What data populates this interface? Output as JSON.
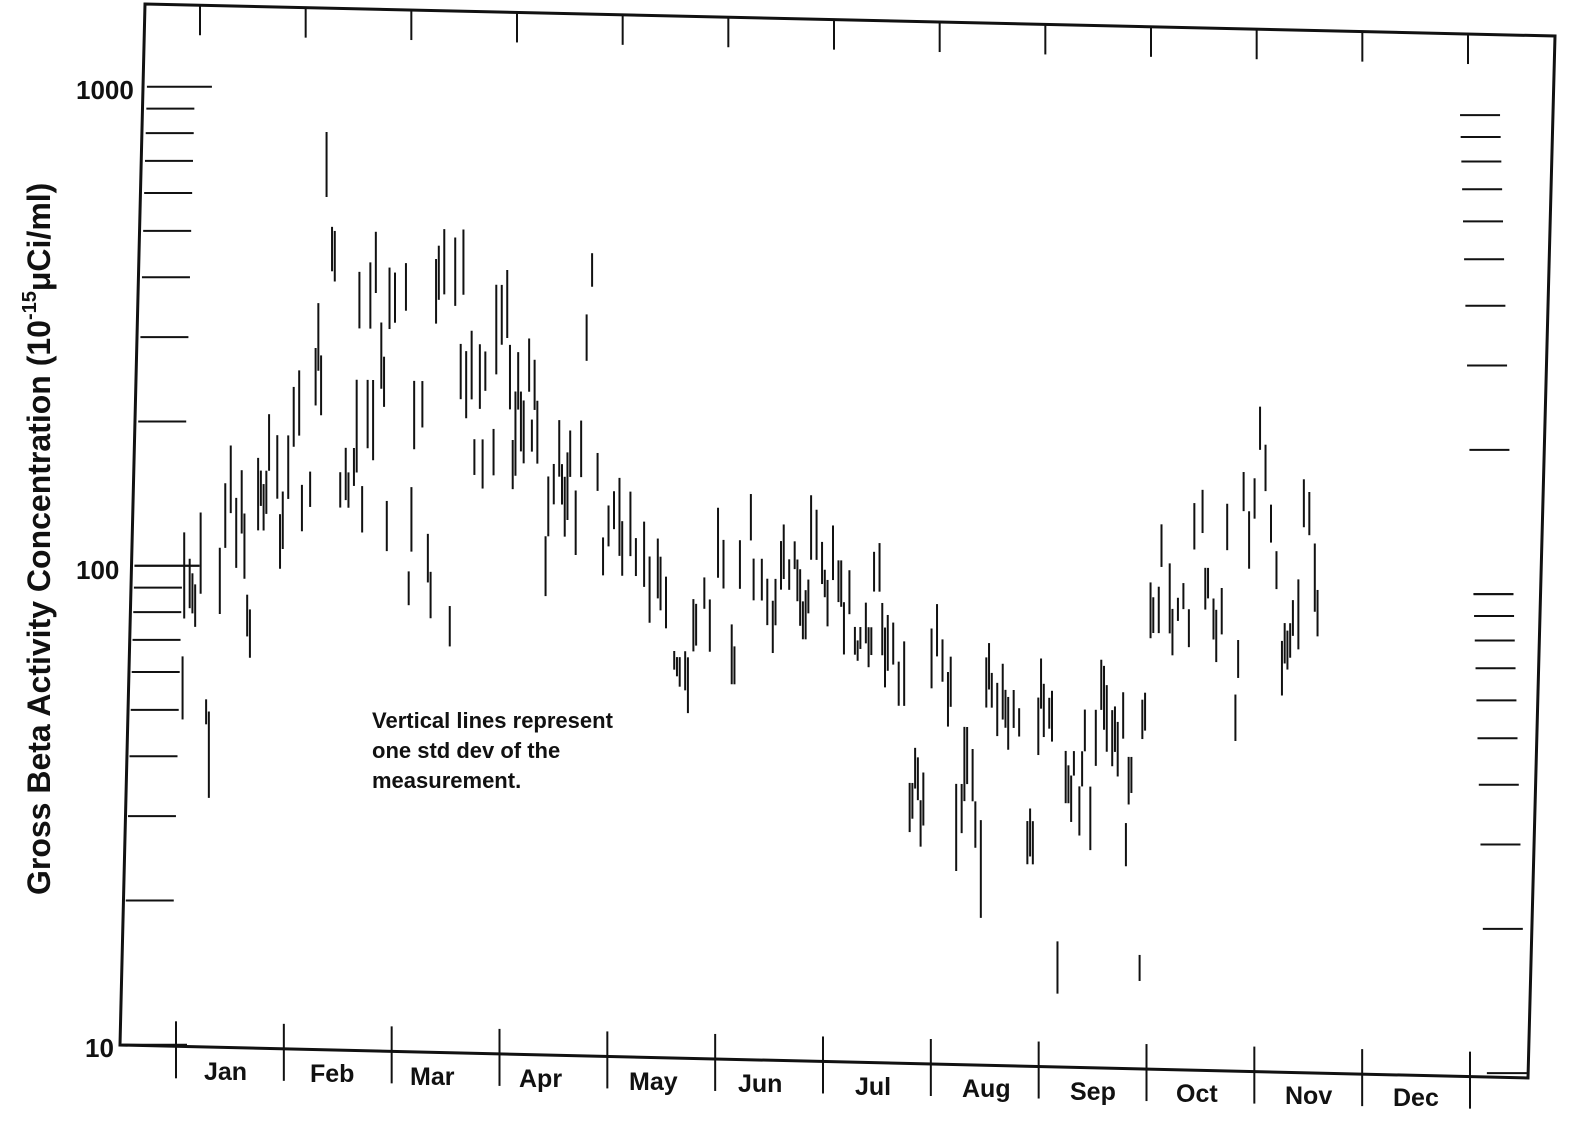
{
  "chart_data": {
    "type": "scatter",
    "ylabel": "Gross Beta Activity Concentration (10",
    "ylabel_sup": "-15",
    "ylabel_unit": "μCi/ml)",
    "yscale": "log",
    "ylim": [
      10,
      1000
    ],
    "ytick_labels": [
      "1000",
      "100",
      "10"
    ],
    "categories": [
      "Jan",
      "Feb",
      "Mar",
      "Apr",
      "May",
      "Jun",
      "Jul",
      "Aug",
      "Sep",
      "Oct",
      "Nov",
      "Dec"
    ],
    "annotation": "Vertical lines represent\none std dev of the\nmeasurement.",
    "error_bars": [
      [
        0.15,
        78,
        118
      ],
      [
        0.12,
        48,
        65
      ],
      [
        0.25,
        82,
        104
      ],
      [
        0.3,
        80,
        97
      ],
      [
        0.35,
        75,
        92
      ],
      [
        0.45,
        88,
        130
      ],
      [
        0.55,
        47,
        53
      ],
      [
        0.6,
        33,
        50
      ],
      [
        0.8,
        80,
        110
      ],
      [
        0.9,
        110,
        150
      ],
      [
        1.0,
        130,
        180
      ],
      [
        1.1,
        100,
        140
      ],
      [
        1.2,
        118,
        160
      ],
      [
        1.25,
        95,
        130
      ],
      [
        1.3,
        72,
        88
      ],
      [
        1.35,
        65,
        82
      ],
      [
        1.5,
        120,
        170
      ],
      [
        1.55,
        135,
        160
      ],
      [
        1.6,
        120,
        150
      ],
      [
        1.65,
        130,
        160
      ],
      [
        1.7,
        160,
        210
      ],
      [
        1.85,
        140,
        190
      ],
      [
        1.9,
        100,
        130
      ],
      [
        1.95,
        110,
        145
      ],
      [
        2.05,
        140,
        190
      ],
      [
        2.15,
        180,
        240
      ],
      [
        2.25,
        190,
        260
      ],
      [
        2.3,
        120,
        150
      ],
      [
        2.45,
        135,
        160
      ],
      [
        2.55,
        220,
        290
      ],
      [
        2.6,
        260,
        360
      ],
      [
        2.65,
        210,
        280
      ],
      [
        2.75,
        600,
        820
      ],
      [
        2.85,
        420,
        520
      ],
      [
        2.9,
        400,
        510
      ],
      [
        3.0,
        135,
        160
      ],
      [
        3.1,
        140,
        180
      ],
      [
        3.15,
        135,
        160
      ],
      [
        3.25,
        150,
        180
      ],
      [
        3.3,
        160,
        250
      ],
      [
        3.35,
        320,
        420
      ],
      [
        3.4,
        120,
        150
      ],
      [
        3.5,
        180,
        250
      ],
      [
        3.55,
        320,
        440
      ],
      [
        3.6,
        170,
        250
      ],
      [
        3.65,
        380,
        510
      ],
      [
        3.75,
        240,
        330
      ],
      [
        3.8,
        220,
        280
      ],
      [
        3.85,
        110,
        140
      ],
      [
        3.9,
        320,
        430
      ],
      [
        4.0,
        330,
        420
      ],
      [
        4.2,
        350,
        440
      ],
      [
        4.25,
        85,
        100
      ],
      [
        4.3,
        110,
        150
      ],
      [
        4.35,
        180,
        250
      ],
      [
        4.5,
        200,
        250
      ],
      [
        4.6,
        95,
        120
      ],
      [
        4.65,
        80,
        100
      ],
      [
        4.75,
        330,
        450
      ],
      [
        4.8,
        370,
        480
      ],
      [
        4.9,
        380,
        520
      ],
      [
        5.0,
        70,
        85
      ],
      [
        5.1,
        360,
        500
      ],
      [
        5.2,
        230,
        300
      ],
      [
        5.25,
        380,
        520
      ],
      [
        5.3,
        210,
        290
      ],
      [
        5.4,
        230,
        320
      ],
      [
        5.45,
        160,
        190
      ],
      [
        5.55,
        220,
        300
      ],
      [
        5.6,
        150,
        190
      ],
      [
        5.65,
        240,
        290
      ],
      [
        5.8,
        160,
        200
      ],
      [
        5.85,
        260,
        400
      ],
      [
        5.95,
        300,
        400
      ],
      [
        6.05,
        310,
        430
      ],
      [
        6.1,
        220,
        300
      ],
      [
        6.15,
        150,
        190
      ],
      [
        6.2,
        160,
        240
      ],
      [
        6.25,
        220,
        290
      ],
      [
        6.3,
        180,
        240
      ],
      [
        6.35,
        170,
        230
      ],
      [
        6.45,
        240,
        310
      ],
      [
        6.5,
        180,
        210
      ],
      [
        6.55,
        220,
        280
      ],
      [
        6.6,
        170,
        230
      ],
      [
        6.75,
        90,
        120
      ],
      [
        6.8,
        120,
        160
      ],
      [
        6.9,
        140,
        170
      ],
      [
        7.0,
        160,
        210
      ],
      [
        7.05,
        140,
        170
      ],
      [
        7.1,
        120,
        160
      ],
      [
        7.15,
        130,
        180
      ],
      [
        7.2,
        160,
        200
      ],
      [
        7.3,
        110,
        150
      ],
      [
        7.4,
        160,
        210
      ],
      [
        7.5,
        280,
        350
      ],
      [
        7.6,
        400,
        470
      ],
      [
        7.7,
        150,
        180
      ],
      [
        7.8,
        100,
        120
      ],
      [
        7.9,
        115,
        140
      ],
      [
        8.0,
        125,
        150
      ],
      [
        8.1,
        110,
        160
      ],
      [
        8.15,
        100,
        130
      ],
      [
        8.3,
        110,
        150
      ],
      [
        8.4,
        100,
        120
      ],
      [
        8.55,
        95,
        130
      ],
      [
        8.65,
        80,
        110
      ],
      [
        8.8,
        90,
        120
      ],
      [
        8.85,
        85,
        110
      ],
      [
        8.95,
        78,
        100
      ],
      [
        9.1,
        64,
        70
      ],
      [
        9.15,
        62,
        68
      ],
      [
        9.2,
        59,
        68
      ],
      [
        9.3,
        58,
        70
      ],
      [
        9.35,
        52,
        68
      ],
      [
        9.45,
        70,
        90
      ],
      [
        9.5,
        72,
        88
      ],
      [
        9.65,
        86,
        100
      ],
      [
        9.75,
        70,
        90
      ],
      [
        9.9,
        100,
        140
      ],
      [
        10.0,
        95,
        120
      ],
      [
        10.15,
        60,
        80
      ],
      [
        10.2,
        60,
        72
      ],
      [
        10.3,
        95,
        120
      ],
      [
        10.5,
        120,
        150
      ],
      [
        10.55,
        90,
        110
      ],
      [
        10.7,
        90,
        110
      ],
      [
        10.8,
        80,
        100
      ],
      [
        10.9,
        70,
        90
      ],
      [
        10.95,
        80,
        100
      ],
      [
        11.05,
        95,
        120
      ],
      [
        11.1,
        100,
        130
      ],
      [
        11.2,
        95,
        110
      ],
      [
        11.3,
        105,
        120
      ],
      [
        11.35,
        90,
        110
      ],
      [
        11.4,
        80,
        105
      ],
      [
        11.45,
        75,
        90
      ],
      [
        11.5,
        75,
        95
      ],
      [
        11.55,
        85,
        100
      ],
      [
        11.6,
        110,
        150
      ],
      [
        11.7,
        110,
        140
      ],
      [
        11.8,
        98,
        120
      ],
      [
        11.85,
        92,
        105
      ],
      [
        11.9,
        80,
        100
      ],
      [
        12.0,
        100,
        130
      ],
      [
        12.1,
        90,
        110
      ],
      [
        12.15,
        88,
        110
      ],
      [
        12.2,
        70,
        90
      ],
      [
        12.3,
        85,
        105
      ],
      [
        12.4,
        70,
        80
      ],
      [
        12.45,
        68,
        75
      ],
      [
        12.5,
        72,
        80
      ],
      [
        12.6,
        74,
        90
      ],
      [
        12.65,
        66,
        80
      ],
      [
        12.7,
        70,
        80
      ],
      [
        12.75,
        95,
        115
      ],
      [
        12.85,
        95,
        120
      ],
      [
        12.9,
        70,
        90
      ],
      [
        12.95,
        60,
        80
      ],
      [
        13.0,
        65,
        85
      ],
      [
        13.1,
        67,
        82
      ],
      [
        13.2,
        55,
        68
      ],
      [
        13.3,
        55,
        75
      ],
      [
        13.4,
        30,
        38
      ],
      [
        13.45,
        32,
        38
      ],
      [
        13.5,
        37,
        45
      ],
      [
        13.55,
        35,
        43
      ],
      [
        13.6,
        28,
        35
      ],
      [
        13.65,
        31,
        40
      ],
      [
        13.8,
        60,
        80
      ],
      [
        13.9,
        70,
        90
      ],
      [
        14.0,
        62,
        76
      ],
      [
        14.1,
        50,
        65
      ],
      [
        14.15,
        55,
        70
      ],
      [
        14.25,
        25,
        38
      ],
      [
        14.35,
        30,
        38
      ],
      [
        14.4,
        35,
        50
      ],
      [
        14.45,
        38,
        50
      ],
      [
        14.55,
        35,
        45
      ],
      [
        14.6,
        28,
        35
      ],
      [
        14.7,
        20,
        32
      ],
      [
        14.8,
        55,
        70
      ],
      [
        14.85,
        60,
        75
      ],
      [
        14.9,
        55,
        65
      ],
      [
        15.0,
        48,
        62
      ],
      [
        15.1,
        52,
        68
      ],
      [
        15.15,
        50,
        60
      ],
      [
        15.2,
        45,
        58
      ],
      [
        15.3,
        50,
        60
      ],
      [
        15.4,
        48,
        55
      ],
      [
        15.55,
        26,
        32
      ],
      [
        15.6,
        27,
        34
      ],
      [
        15.65,
        26,
        32
      ],
      [
        15.75,
        44,
        58
      ],
      [
        15.8,
        55,
        70
      ],
      [
        15.85,
        48,
        62
      ],
      [
        15.95,
        50,
        58
      ],
      [
        16.0,
        47,
        60
      ],
      [
        16.1,
        14,
        18
      ],
      [
        16.25,
        35,
        45
      ],
      [
        16.3,
        35,
        42
      ],
      [
        16.35,
        32,
        40
      ],
      [
        16.4,
        40,
        45
      ],
      [
        16.5,
        30,
        38
      ],
      [
        16.55,
        38,
        45
      ],
      [
        16.6,
        45,
        55
      ],
      [
        16.7,
        28,
        38
      ],
      [
        16.8,
        42,
        55
      ],
      [
        16.9,
        55,
        70
      ],
      [
        16.95,
        50,
        68
      ],
      [
        17.0,
        45,
        62
      ],
      [
        17.1,
        42,
        55
      ],
      [
        17.15,
        45,
        56
      ],
      [
        17.2,
        40,
        52
      ],
      [
        17.3,
        48,
        60
      ],
      [
        17.35,
        26,
        32
      ],
      [
        17.4,
        35,
        44
      ],
      [
        17.45,
        37,
        44
      ],
      [
        17.6,
        15,
        17
      ],
      [
        17.65,
        48,
        58
      ],
      [
        17.7,
        50,
        60
      ],
      [
        17.8,
        78,
        102
      ],
      [
        17.85,
        80,
        95
      ],
      [
        17.95,
        80,
        100
      ],
      [
        18.0,
        110,
        135
      ],
      [
        18.15,
        80,
        112
      ],
      [
        18.2,
        72,
        90
      ],
      [
        18.3,
        85,
        95
      ],
      [
        18.4,
        90,
        102
      ],
      [
        18.5,
        75,
        90
      ],
      [
        18.6,
        120,
        150
      ],
      [
        18.75,
        130,
        160
      ],
      [
        18.8,
        90,
        110
      ],
      [
        18.85,
        95,
        110
      ],
      [
        18.95,
        78,
        95
      ],
      [
        19.0,
        70,
        90
      ],
      [
        19.1,
        80,
        100
      ],
      [
        19.2,
        120,
        150
      ],
      [
        19.35,
        48,
        60
      ],
      [
        19.4,
        65,
        78
      ],
      [
        19.5,
        145,
        175
      ],
      [
        19.6,
        110,
        145
      ],
      [
        19.7,
        140,
        170
      ],
      [
        19.8,
        195,
        240
      ],
      [
        19.9,
        160,
        200
      ],
      [
        20.0,
        125,
        150
      ],
      [
        20.1,
        100,
        120
      ],
      [
        20.2,
        60,
        78
      ],
      [
        20.25,
        70,
        85
      ],
      [
        20.3,
        68,
        82
      ],
      [
        20.35,
        72,
        85
      ],
      [
        20.4,
        80,
        95
      ],
      [
        20.5,
        75,
        105
      ],
      [
        20.6,
        135,
        170
      ],
      [
        20.7,
        130,
        160
      ],
      [
        20.8,
        90,
        125
      ],
      [
        20.85,
        80,
        100
      ]
    ]
  }
}
